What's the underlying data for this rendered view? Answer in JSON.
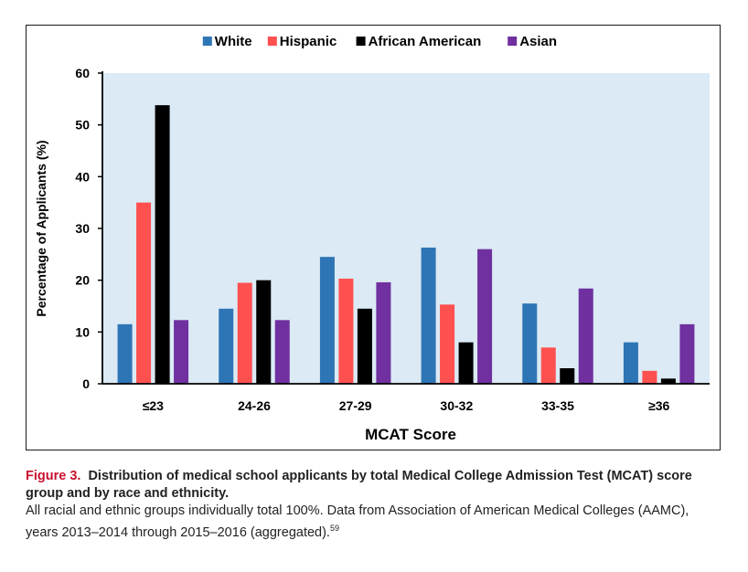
{
  "chart_data": {
    "type": "bar",
    "categories": [
      "≤23",
      "24-26",
      "27-29",
      "30-32",
      "33-35",
      "≥36"
    ],
    "series": [
      {
        "name": "White",
        "color": "#2e75b6",
        "values": [
          11.5,
          14.5,
          24.5,
          26.3,
          15.5,
          8.0
        ]
      },
      {
        "name": "Hispanic",
        "color": "#ff5050",
        "values": [
          35.0,
          19.5,
          20.3,
          15.3,
          7.0,
          2.5
        ]
      },
      {
        "name": "African American",
        "color": "#000000",
        "values": [
          53.8,
          20.0,
          14.5,
          8.0,
          3.0,
          1.0
        ]
      },
      {
        "name": "Asian",
        "color": "#7030a0",
        "values": [
          12.3,
          12.3,
          19.6,
          26.0,
          18.4,
          11.5
        ]
      }
    ],
    "xlabel": "MCAT Score",
    "ylabel": "Percentage of Applicants (%)",
    "ylim": [
      0,
      60
    ],
    "yticks": [
      0,
      10,
      20,
      30,
      40,
      50,
      60
    ],
    "grid": false,
    "legend_position": "top-center",
    "plot_background": "#dbeaf4"
  },
  "caption": {
    "label": "Figure 3.",
    "title": "Distribution of medical school applicants by total Medical College Admission Test (MCAT) score group and by race and ethnicity.",
    "note": "All racial and ethnic groups individually total 100%. Data from Association of American Medical Colleges (AAMC), years 2013–2014 through 2015–2016 (aggregated).",
    "reference": "59"
  }
}
